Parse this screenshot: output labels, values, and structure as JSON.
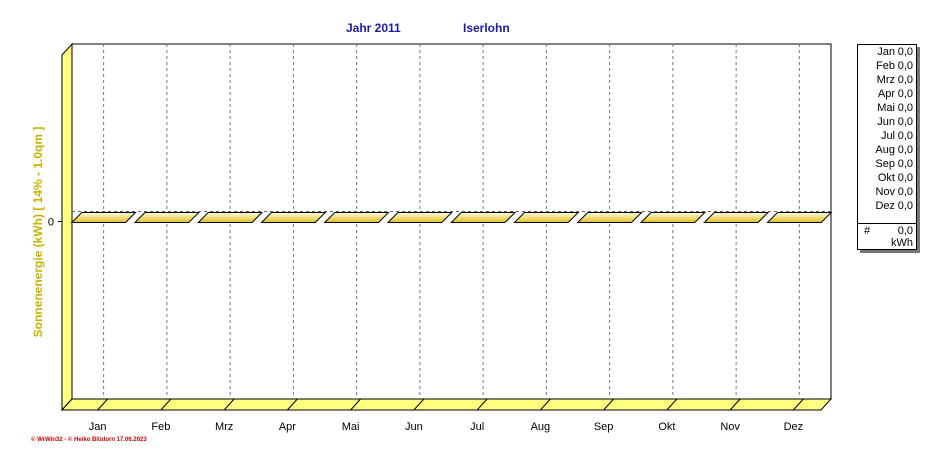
{
  "header": {
    "title_year": "Jahr  2011",
    "title_location": "Iserlohn"
  },
  "chart_data": {
    "type": "bar",
    "categories": [
      "Jan",
      "Feb",
      "Mrz",
      "Apr",
      "Mai",
      "Jun",
      "Jul",
      "Aug",
      "Sep",
      "Okt",
      "Nov",
      "Dez"
    ],
    "series": [
      {
        "values": [
          0,
          0,
          0,
          0,
          0,
          0,
          0,
          0,
          0,
          0,
          0,
          0
        ]
      }
    ],
    "ylabel": "Sonnenenergie  (kWh)     [  14%  -  1.0qm  ]",
    "yticks": [
      "0"
    ],
    "ylim": [
      -1,
      1
    ],
    "grid": "vertical dashed",
    "legend_position": "right"
  },
  "legend": {
    "rows": [
      {
        "month": "Jan",
        "value": "0,0"
      },
      {
        "month": "Feb",
        "value": "0,0"
      },
      {
        "month": "Mrz",
        "value": "0,0"
      },
      {
        "month": "Apr",
        "value": "0,0"
      },
      {
        "month": "Mai",
        "value": "0,0"
      },
      {
        "month": "Jun",
        "value": "0,0"
      },
      {
        "month": "Jul",
        "value": "0,0"
      },
      {
        "month": "Aug",
        "value": "0,0"
      },
      {
        "month": "Sep",
        "value": "0,0"
      },
      {
        "month": "Okt",
        "value": "0,0"
      },
      {
        "month": "Nov",
        "value": "0,0"
      },
      {
        "month": "Dez",
        "value": "0,0"
      }
    ],
    "total_symbol": "#",
    "total_value": "0,0",
    "unit": "kWh"
  },
  "footer": "© WrWin32  -  © Heiko Blüdorn  17.06.2023",
  "colors": {
    "title": "#1a1aa6",
    "axis_label": "#c8b400",
    "wall": "#ffff80",
    "bar_light": "#fffbe0",
    "bar_dark": "#e0c020",
    "footer": "#cc0000"
  }
}
